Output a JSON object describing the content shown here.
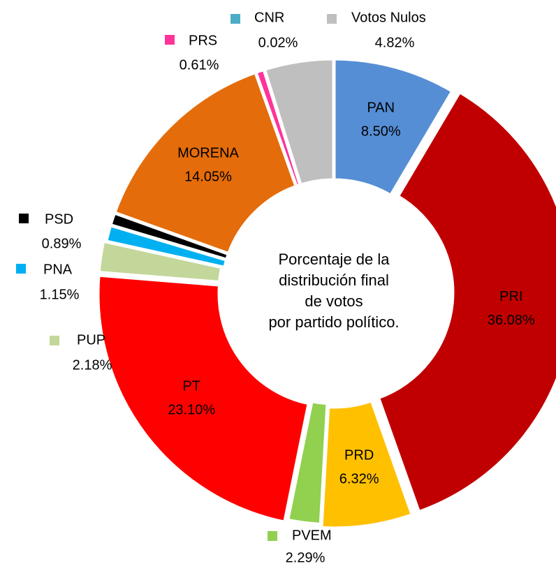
{
  "chart_data": {
    "type": "donut",
    "center_label": [
      "Porcentaje de la",
      "distribución final",
      "de votos",
      "por partido político."
    ],
    "categories": [
      "PAN",
      "PRI",
      "PRD",
      "PVEM",
      "PT",
      "PUP",
      "PNA",
      "PSD",
      "MORENA",
      "PRS",
      "CNR",
      "Votos Nulos"
    ],
    "values": [
      8.5,
      36.08,
      6.32,
      2.29,
      23.1,
      2.18,
      1.15,
      0.89,
      14.05,
      0.61,
      0.02,
      4.82
    ],
    "value_labels": [
      "8.50%",
      "36.08%",
      "6.32%",
      "2.29%",
      "23.10%",
      "2.18%",
      "1.15%",
      "0.89%",
      "14.05%",
      "0.61%",
      "0.02%",
      "4.82%"
    ],
    "colors": [
      "#558ed5",
      "#c00000",
      "#ffc000",
      "#92d050",
      "#ff0000",
      "#c4d79b",
      "#00b0f0",
      "#000000",
      "#e46c0a",
      "#ff3399",
      "#4bacc6",
      "#bfbfbf"
    ]
  }
}
